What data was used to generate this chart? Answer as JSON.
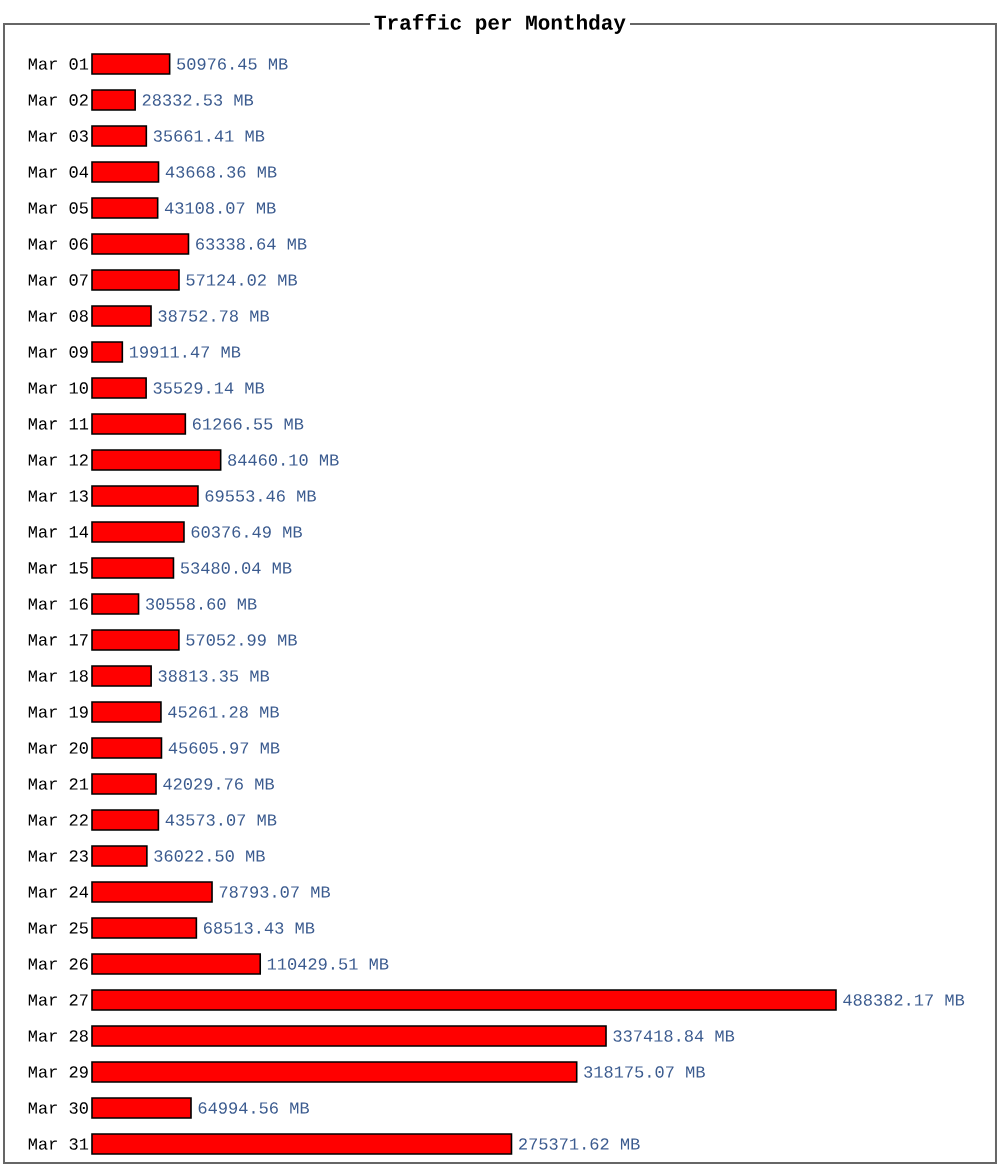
{
  "chart_data": {
    "type": "bar",
    "orientation": "horizontal",
    "title": "Traffic per Monthday",
    "color": "#ff0000",
    "categories": [
      "Mar 01",
      "Mar 02",
      "Mar 03",
      "Mar 04",
      "Mar 05",
      "Mar 06",
      "Mar 07",
      "Mar 08",
      "Mar 09",
      "Mar 10",
      "Mar 11",
      "Mar 12",
      "Mar 13",
      "Mar 14",
      "Mar 15",
      "Mar 16",
      "Mar 17",
      "Mar 18",
      "Mar 19",
      "Mar 20",
      "Mar 21",
      "Mar 22",
      "Mar 23",
      "Mar 24",
      "Mar 25",
      "Mar 26",
      "Mar 27",
      "Mar 28",
      "Mar 29",
      "Mar 30",
      "Mar 31"
    ],
    "values": [
      50976.45,
      28332.53,
      35661.41,
      43668.36,
      43108.07,
      63338.64,
      57124.02,
      38752.78,
      19911.47,
      35529.14,
      61266.55,
      84460.1,
      69553.46,
      60376.49,
      53480.04,
      30558.6,
      57052.99,
      38813.35,
      45261.28,
      45605.97,
      42029.76,
      43573.07,
      36022.5,
      78793.07,
      68513.43,
      110429.51,
      488382.17,
      337418.84,
      318175.07,
      64994.56,
      275371.62
    ],
    "value_labels": [
      "50976.45 MB",
      "28332.53 MB",
      "35661.41 MB",
      "43668.36 MB",
      "43108.07 MB",
      "63338.64 MB",
      "57124.02 MB",
      "38752.78 MB",
      "19911.47 MB",
      "35529.14 MB",
      "61266.55 MB",
      "84460.10 MB",
      "69553.46 MB",
      "60376.49 MB",
      "53480.04 MB",
      "30558.60 MB",
      "57052.99 MB",
      "38813.35 MB",
      "45261.28 MB",
      "45605.97 MB",
      "42029.76 MB",
      "43573.07 MB",
      "36022.50 MB",
      "78793.07 MB",
      "68513.43 MB",
      "110429.51 MB",
      "488382.17 MB",
      "337418.84 MB",
      "318175.07 MB",
      "64994.56 MB",
      "275371.62 MB"
    ]
  }
}
